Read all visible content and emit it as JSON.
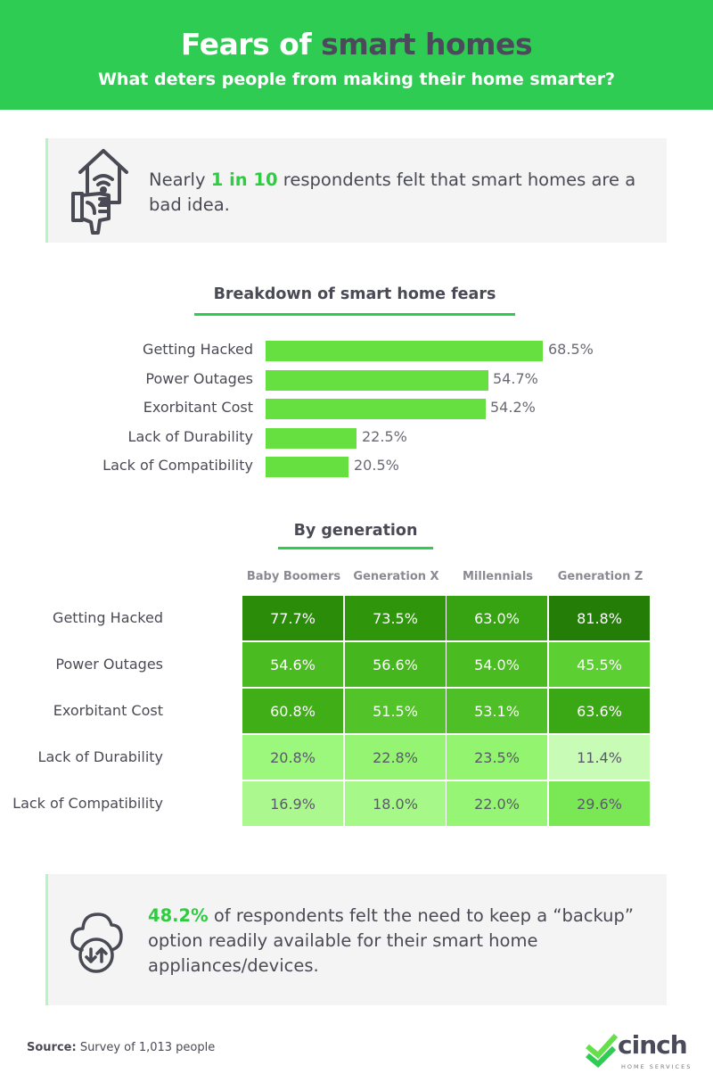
{
  "header": {
    "title_part1": "Fears of ",
    "title_part2": "smart homes",
    "subtitle": "What deters people from making their home smarter?",
    "background_color": "#2ecc52"
  },
  "callout_top": {
    "icon": "house-thumbs-down-icon",
    "prefix": "Nearly ",
    "highlight": "1 in 10",
    "suffix": " respondents felt that smart homes are a bad idea."
  },
  "callout_bottom": {
    "icon": "cloud-sync-icon",
    "highlight": "48.2%",
    "suffix": " of respondents felt the need to keep a “backup” option readily available for their smart home appliances/devices."
  },
  "footer": {
    "source_label": "Source:",
    "source_text": " Survey of 1,013 people",
    "logo_word": "cinch",
    "logo_sub": "HOME SERVICES"
  },
  "chart_data": [
    {
      "type": "bar",
      "orientation": "horizontal",
      "title": "Breakdown of smart home fears",
      "categories": [
        "Getting Hacked",
        "Power Outages",
        "Exorbitant Cost",
        "Lack of Durability",
        "Lack of Compatibility"
      ],
      "values": [
        68.5,
        54.7,
        54.2,
        22.5,
        20.5
      ],
      "value_labels": [
        "68.5%",
        "54.7%",
        "54.2%",
        "22.5%",
        "20.5%"
      ],
      "xlabel": "",
      "ylabel": "",
      "xlim": [
        0,
        100
      ],
      "grid": false,
      "legend": "none",
      "bar_color": "#66df40"
    },
    {
      "type": "heatmap",
      "title": "By generation",
      "columns": [
        "Baby Boomers",
        "Generation X",
        "Millennials",
        "Generation Z"
      ],
      "rows": [
        "Getting Hacked",
        "Power Outages",
        "Exorbitant Cost",
        "Lack of Durability",
        "Lack of Compatibility"
      ],
      "values": [
        [
          77.7,
          73.5,
          63.0,
          81.8
        ],
        [
          54.6,
          56.6,
          54.0,
          45.5
        ],
        [
          60.8,
          51.5,
          53.1,
          63.6
        ],
        [
          20.8,
          22.8,
          23.5,
          11.4
        ],
        [
          16.9,
          18.0,
          22.0,
          29.6
        ]
      ],
      "labels": [
        [
          "77.7%",
          "73.5%",
          "63.0%",
          "81.8%"
        ],
        [
          "54.6%",
          "56.6%",
          "54.0%",
          "45.5%"
        ],
        [
          "60.8%",
          "51.5%",
          "53.1%",
          "63.6%"
        ],
        [
          "20.8%",
          "22.8%",
          "23.5%",
          "11.4%"
        ],
        [
          "16.9%",
          "18.0%",
          "22.0%",
          "29.6%"
        ]
      ],
      "colors": [
        [
          "#2a8c08",
          "#2f950b",
          "#37a312",
          "#237d06"
        ],
        [
          "#4bbb22",
          "#46b61e",
          "#4bbb22",
          "#5ccf33"
        ],
        [
          "#3fae17",
          "#52c42a",
          "#4ebf26",
          "#3aa714"
        ],
        [
          "#9cf77d",
          "#95f573",
          "#93f470",
          "#c8fbb5"
        ],
        [
          "#abf98e",
          "#a6f889",
          "#97f575",
          "#7ae854"
        ]
      ],
      "text_colors": [
        [
          "#ffffff",
          "#ffffff",
          "#ffffff",
          "#ffffff"
        ],
        [
          "#ffffff",
          "#ffffff",
          "#ffffff",
          "#ffffff"
        ],
        [
          "#ffffff",
          "#ffffff",
          "#ffffff",
          "#ffffff"
        ],
        [
          "#5a5a68",
          "#5a5a68",
          "#5a5a68",
          "#5a5a68"
        ],
        [
          "#5a5a68",
          "#5a5a68",
          "#5a5a68",
          "#5a5a68"
        ]
      ]
    }
  ]
}
